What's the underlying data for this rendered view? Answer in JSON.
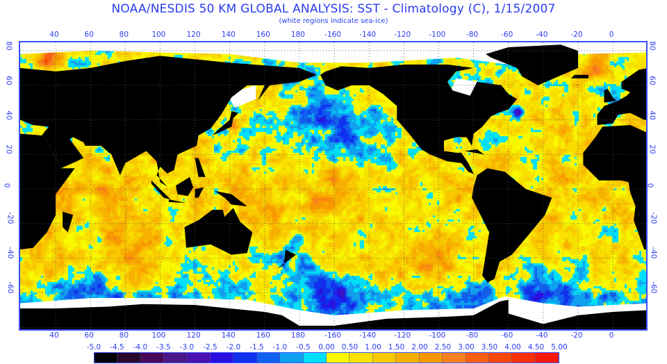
{
  "title": "NOAA/NESDIS 50 KM GLOBAL ANALYSIS: SST - Climatology (C), 1/15/2007",
  "subtitle": "(white regions indicate sea-ice)",
  "longitude_labels": [
    "40",
    "60",
    "80",
    "100",
    "120",
    "140",
    "160",
    "180",
    "-160",
    "-140",
    "-120",
    "-100",
    "-80",
    "-60",
    "-40",
    "-20",
    "0"
  ],
  "latitude_labels": [
    "80",
    "60",
    "40",
    "20",
    "0",
    "-20",
    "-40",
    "-60"
  ],
  "colorbar": {
    "labels": [
      "-5.0",
      "-4.5",
      "-4.0",
      "-3.5",
      "-3.0",
      "-2.5",
      "-2.0",
      "-1.5",
      "-1.0",
      "-0.5",
      "0.00",
      "0.50",
      "1.00",
      "1.50",
      "2.00",
      "2.50",
      "3.00",
      "3.50",
      "4.00",
      "4.50",
      "5.00"
    ],
    "colors": [
      "#000000",
      "#2a0a2a",
      "#4a0858",
      "#4a1888",
      "#4a10b0",
      "#2a10e0",
      "#1030f0",
      "#1060f0",
      "#10a0f0",
      "#00e0f8",
      "#f8f800",
      "#f8e000",
      "#f8c800",
      "#f8b000",
      "#f89800",
      "#f88020",
      "#f86010",
      "#f84800",
      "#f83000",
      "#f81800"
    ]
  },
  "colors": {
    "land": "#000000",
    "sea_ice": "#ffffff",
    "axis": "#2a3cf0"
  }
}
